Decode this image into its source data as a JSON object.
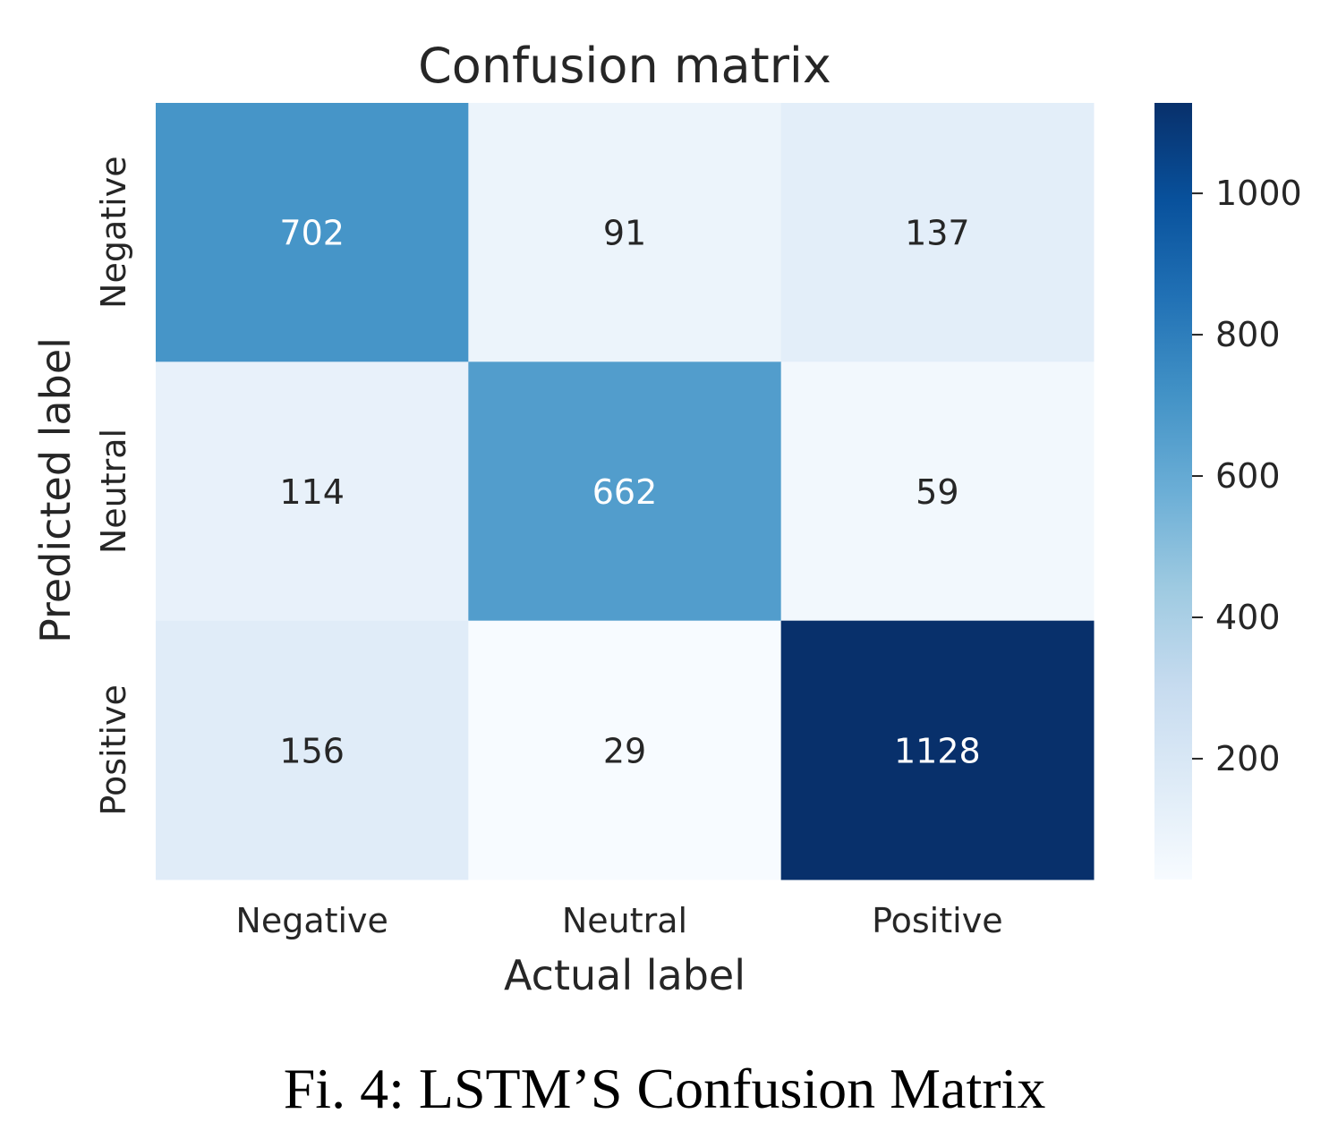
{
  "chart_data": {
    "type": "heatmap",
    "title": "Confusion matrix",
    "xlabel": "Actual label",
    "ylabel": "Predicted label",
    "x_categories": [
      "Negative",
      "Neutral",
      "Positive"
    ],
    "y_categories": [
      "Negative",
      "Neutral",
      "Positive"
    ],
    "values": [
      [
        702,
        91,
        137
      ],
      [
        114,
        662,
        59
      ],
      [
        156,
        29,
        1128
      ]
    ],
    "colormap": "Blues",
    "colorbar": {
      "range": [
        29,
        1128
      ],
      "ticks": [
        200,
        400,
        600,
        800,
        1000
      ],
      "tick_labels": [
        "200",
        "400",
        "600",
        "800",
        "1000"
      ]
    }
  },
  "caption": "Fi. 4: LSTM’S Confusion Matrix"
}
